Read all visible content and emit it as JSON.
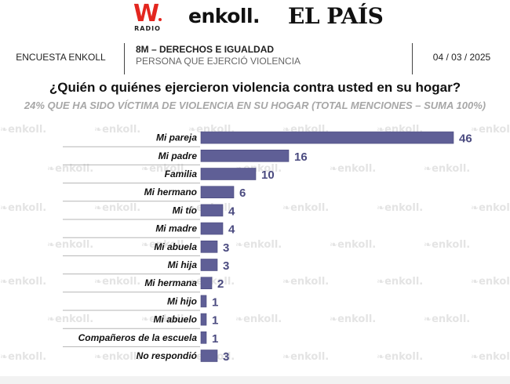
{
  "logos": {
    "wradio_mark": "W",
    "wradio_sub": "RADIO",
    "enkoll": "enkoll.",
    "elpais": "EL PAÍS"
  },
  "header": {
    "left": "ENCUESTA ENKOLL",
    "mid_title": "8M – DERECHOS E IGUALDAD",
    "mid_subtitle": "PERSONA QUE EJERCIÓ VIOLENCIA",
    "date": "04 / 03 / 2025"
  },
  "watermark_text": "enkoll.",
  "colors": {
    "bar": "#5f5f96",
    "value_label": "#4b4b80",
    "separator": "#b5b5b5"
  },
  "chart_data": {
    "type": "bar",
    "orientation": "horizontal",
    "title": "¿Quién o quiénes ejercieron violencia contra usted en su hogar?",
    "subtitle": "24% QUE HA SIDO VÍCTIMA DE VIOLENCIA EN SU HOGAR (TOTAL MENCIONES – SUMA 100%)",
    "xlabel": "",
    "ylabel": "",
    "xlim": [
      0,
      46
    ],
    "grid": false,
    "legend": "none",
    "categories": [
      "Mi pareja",
      "Mi padre",
      "Familia",
      "Mi hermano",
      "Mi tío",
      "Mi madre",
      "Mi abuela",
      "Mi hija",
      "Mi hermana",
      "Mi hijo",
      "Mi abuelo",
      "Compañeros de la escuela",
      "No respondió"
    ],
    "values": [
      46,
      16,
      10,
      6,
      4,
      4,
      3,
      3,
      2,
      1,
      1,
      1,
      3
    ]
  }
}
